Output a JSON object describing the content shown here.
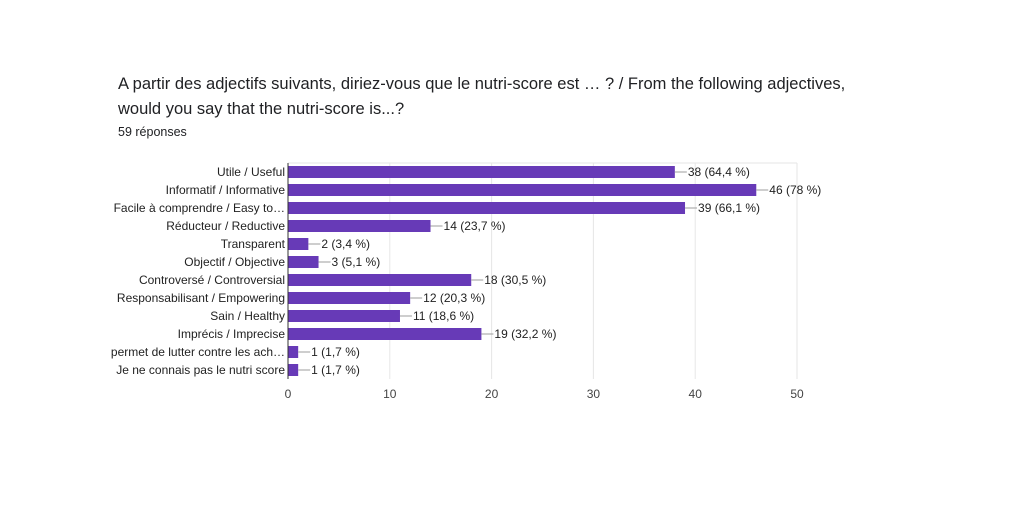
{
  "header": {
    "title": "A partir des adjectifs suivants, diriez-vous que le nutri-score est … ? / From the following adjectives, would you say that the nutri-score is...?",
    "responses": "59 réponses"
  },
  "colors": {
    "bar": "#673ab7",
    "grid": "#e6e6e6",
    "axis": "#333333"
  },
  "chart_data": {
    "type": "bar",
    "orientation": "horizontal",
    "categories": [
      "Utile / Useful",
      "Informatif / Informative",
      "Facile à comprendre / Easy to…",
      "Réducteur / Reductive",
      "Transparent",
      "Objectif / Objective",
      "Controversé / Controversial",
      "Responsabilisant / Empowering",
      "Sain / Healthy",
      "Imprécis / Imprecise",
      "permet de lutter contre les ach…",
      "Je ne connais pas le nutri score"
    ],
    "values": [
      38,
      46,
      39,
      14,
      2,
      3,
      18,
      12,
      11,
      19,
      1,
      1
    ],
    "labels": [
      "38 (64,4 %)",
      "46 (78 %)",
      "39 (66,1 %)",
      "14 (23,7 %)",
      "2 (3,4 %)",
      "3 (5,1 %)",
      "18 (30,5 %)",
      "12 (20,3 %)",
      "11 (18,6 %)",
      "19 (32,2 %)",
      "1 (1,7 %)",
      "1 (1,7 %)"
    ],
    "xlim": [
      0,
      50
    ],
    "xticks": [
      "0",
      "10",
      "20",
      "30",
      "40",
      "50"
    ],
    "grid": true
  }
}
